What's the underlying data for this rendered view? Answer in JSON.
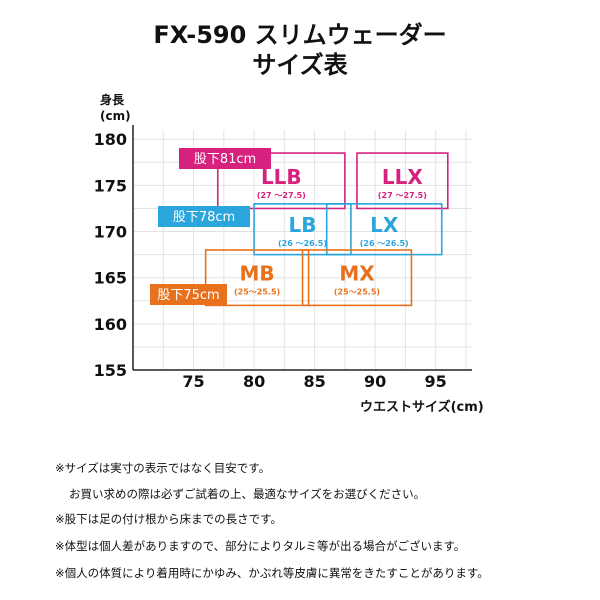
{
  "title": {
    "line1": "FX-590 スリムウェーダー",
    "line2": "サイズ表"
  },
  "chart_data": {
    "type": "size-grid",
    "ylabel": "身長",
    "yunit": "(cm)",
    "xlabel": "ウエストサイズ(cm)",
    "xlim": [
      70,
      98
    ],
    "ylim": [
      155,
      181
    ],
    "xticks": [
      75,
      80,
      85,
      90,
      95
    ],
    "yticks": [
      155,
      160,
      165,
      170,
      175,
      180
    ],
    "grid": true,
    "inseam_groups": [
      {
        "label": "股下81cm",
        "color": "#d6217f",
        "sizes": [
          {
            "name": "LLB",
            "range": "(27 ～27.5)",
            "x0": 77,
            "x1": 87.5,
            "y0": 172.5,
            "y1": 178.5
          },
          {
            "name": "LLX",
            "range": "(27 ～27.5)",
            "x0": 88.5,
            "x1": 96,
            "y0": 172.5,
            "y1": 178.5
          }
        ]
      },
      {
        "label": "股下78cm",
        "color": "#2aa6dc",
        "sizes": [
          {
            "name": "LB",
            "range": "(26 ～26.5)",
            "x0": 80,
            "x1": 88,
            "y0": 167.5,
            "y1": 173
          },
          {
            "name": "LX",
            "range": "(26 ～26.5)",
            "x0": 86,
            "x1": 95.5,
            "y0": 167.5,
            "y1": 173
          }
        ]
      },
      {
        "label": "股下75cm",
        "color": "#e8711d",
        "sizes": [
          {
            "name": "MB",
            "range": "(25～25.5)",
            "x0": 76,
            "x1": 84.5,
            "y0": 162,
            "y1": 168
          },
          {
            "name": "MX",
            "range": "(25～25.5)",
            "x0": 84,
            "x1": 93,
            "y0": 162,
            "y1": 168
          }
        ]
      }
    ]
  },
  "notes": [
    "※サイズは実寸の表示ではなく目安です。",
    "お買い求めの際は必ずご試着の上、最適なサイズをお選びください。",
    "※股下は足の付け根から床までの長さです。",
    "※体型は個人差がありますので、部分によりタルミ等が出る場合がございます。",
    "※個人の体質により着用時にかゆみ、かぶれ等皮膚に異常をきたすことがあります。"
  ]
}
